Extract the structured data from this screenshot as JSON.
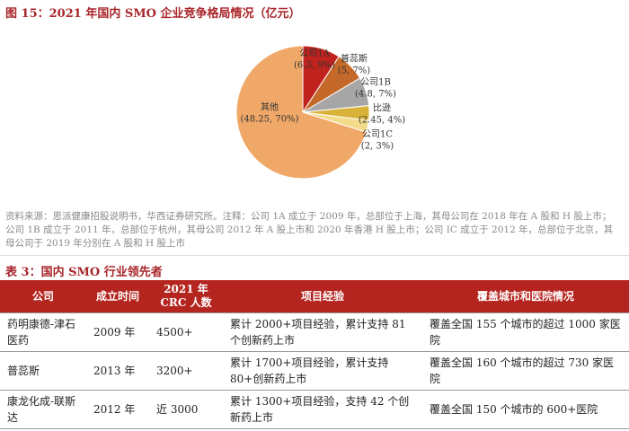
{
  "chart_data": {
    "type": "pie",
    "title": "图 15：2021 年国内 SMO 企业竞争格局情况（亿元）",
    "categories": [
      "公司1A",
      "普蕊斯",
      "公司1B",
      "比逊",
      "公司1C",
      "其他"
    ],
    "values": [
      6.3,
      5,
      4.8,
      2.45,
      2,
      48.25
    ],
    "value_labels": [
      "(6.3, 9%)",
      "(5, 7%)",
      "(4.8, 7%)",
      "(2.45, 4%)",
      "(2, 3%)",
      "(48.25, 70%)"
    ],
    "colors": [
      "#c0231e",
      "#c5692a",
      "#a6a6a6",
      "#d9b23a",
      "#f2dc8a",
      "#f0a868"
    ]
  },
  "source": "资料来源：思派健康招股说明书，华西证券研究所。注释：公司 1A 成立于 2009 年，总部位于上海，其母公司在 2018 年在 A 股和 H 股上市；公司 1B 成立于 2011 年，总部位于杭州，其母公司 2012 年 A 股上市和 2020 年香港 H 股上市；公司 IC 成立于 2012 年，总部位于北京，其母公司于 2019 年分别在 A 股和 H 股上市",
  "table": {
    "title": "表 3：国内 SMO 行业领先者",
    "header": [
      "公司",
      "成立时间",
      "2021 年 CRC 人数",
      "项目经验",
      "覆盖城市和医院情况"
    ],
    "rows": [
      [
        "药明康德-津石医药",
        "2009 年",
        "4500+",
        "累计 2000+项目经验，累计支持 81 个创新药上市",
        "覆盖全国 155 个城市的超过 1000 家医院"
      ],
      [
        "普蕊斯",
        "2013 年",
        "3200+",
        "累计 1700+项目经验，累计支持 80+创新药上市",
        "覆盖全国 160 个城市的超过 730 家医院"
      ],
      [
        "康龙化成-联斯达",
        "2012 年",
        "近 3000",
        "累计 1300+项目经验，支持 42 个创新药上市",
        "覆盖全国 150 个城市的 600+医院"
      ]
    ]
  }
}
